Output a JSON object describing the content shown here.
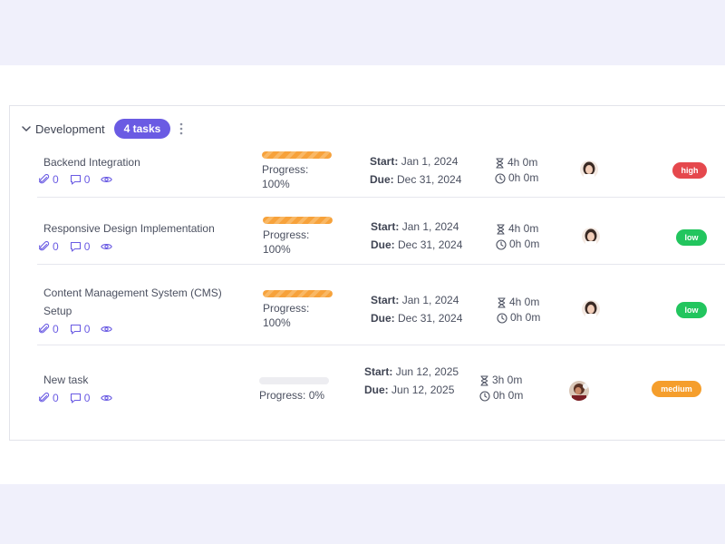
{
  "group": {
    "title": "Development",
    "badge": "4 tasks"
  },
  "colors": {
    "accent": "#6a5be3",
    "progress": "#f7a23b",
    "high": "#e5484d",
    "low": "#22c55e",
    "medium": "#f59e2c"
  },
  "labels": {
    "progress_prefix": "Progress:",
    "start": "Start:",
    "due": "Due:"
  },
  "tasks": [
    {
      "name": "Backend Integration",
      "attachments": "0",
      "comments": "0",
      "progress_label": "100%",
      "progress": 1.0,
      "start": "Jan 1, 2024",
      "due": "Dec 31, 2024",
      "estimated": "4h 0m",
      "logged": "0h 0m",
      "priority": "high"
    },
    {
      "name": "Responsive Design Implementation",
      "attachments": "0",
      "comments": "0",
      "progress_label": "100%",
      "progress": 1.0,
      "start": "Jan 1, 2024",
      "due": "Dec 31, 2024",
      "estimated": "4h 0m",
      "logged": "0h 0m",
      "priority": "low"
    },
    {
      "name": "Content Management System (CMS) Setup",
      "attachments": "0",
      "comments": "0",
      "progress_label": "100%",
      "progress": 1.0,
      "start": "Jan 1, 2024",
      "due": "Dec 31, 2024",
      "estimated": "4h 0m",
      "logged": "0h 0m",
      "priority": "low"
    },
    {
      "name": "New task",
      "attachments": "0",
      "comments": "0",
      "progress_label": "0%",
      "progress": 0.0,
      "start": "Jun 12, 2025",
      "due": "Jun 12, 2025",
      "estimated": "3h 0m",
      "logged": "0h 0m",
      "priority": "medium"
    }
  ]
}
